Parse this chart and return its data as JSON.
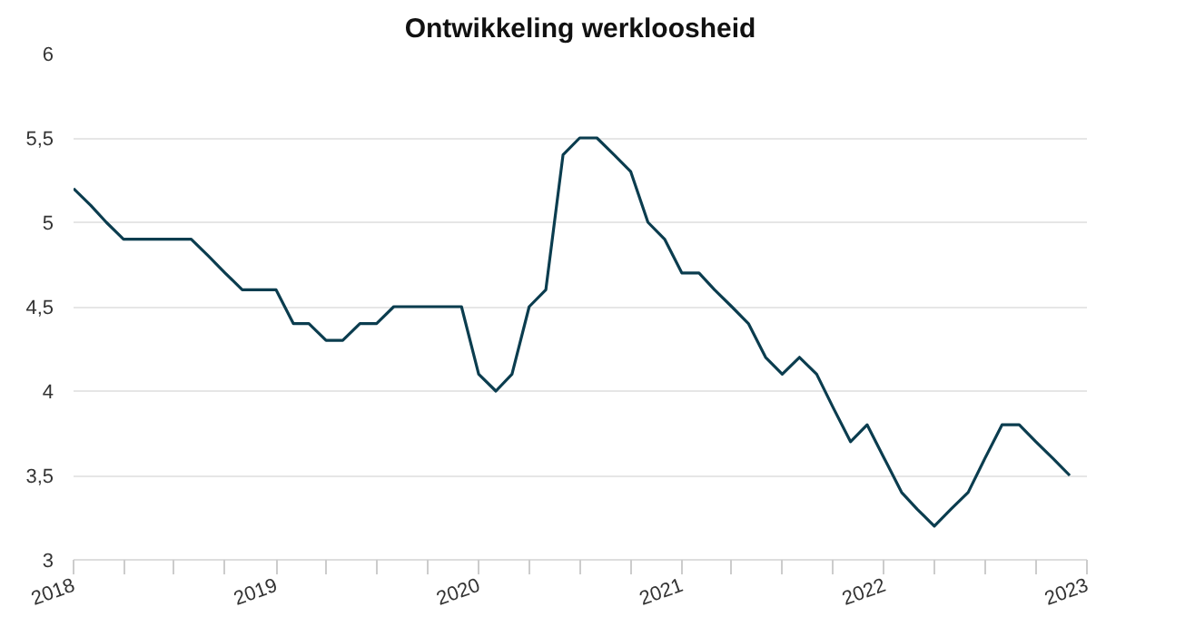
{
  "chart_data": {
    "type": "line",
    "title": "Ontwikkeling werkloosheid",
    "x": [
      "2018-01",
      "2018-02",
      "2018-03",
      "2018-04",
      "2018-05",
      "2018-06",
      "2018-07",
      "2018-08",
      "2018-09",
      "2018-10",
      "2018-11",
      "2018-12",
      "2019-01",
      "2019-02",
      "2019-03",
      "2019-04",
      "2019-05",
      "2019-06",
      "2019-07",
      "2019-08",
      "2019-09",
      "2019-10",
      "2019-11",
      "2019-12",
      "2020-01",
      "2020-02",
      "2020-03",
      "2020-04",
      "2020-05",
      "2020-06",
      "2020-07",
      "2020-08",
      "2020-09",
      "2020-10",
      "2020-11",
      "2020-12",
      "2021-01",
      "2021-02",
      "2021-03",
      "2021-04",
      "2021-05",
      "2021-06",
      "2021-07",
      "2021-08",
      "2021-09",
      "2021-10",
      "2021-11",
      "2021-12",
      "2022-01",
      "2022-02",
      "2022-03",
      "2022-04",
      "2022-05",
      "2022-06",
      "2022-07",
      "2022-08",
      "2022-09",
      "2022-10",
      "2022-11",
      "2022-12"
    ],
    "series": [
      {
        "color": "#0b3d4f",
        "values": [
          5.2,
          5.1,
          5.0,
          4.9,
          4.9,
          4.9,
          4.9,
          4.9,
          4.8,
          4.7,
          4.6,
          4.6,
          4.6,
          4.4,
          4.4,
          4.3,
          4.3,
          4.4,
          4.4,
          4.5,
          4.5,
          4.5,
          4.5,
          4.5,
          4.1,
          4.0,
          4.1,
          4.5,
          4.6,
          5.4,
          5.5,
          5.5,
          5.4,
          5.3,
          5.0,
          4.9,
          4.7,
          4.7,
          4.6,
          4.5,
          4.4,
          4.2,
          4.1,
          4.2,
          4.1,
          3.9,
          3.7,
          3.8,
          3.6,
          3.4,
          3.3,
          3.2,
          3.3,
          3.4,
          3.6,
          3.8,
          3.8,
          3.7,
          3.6,
          3.5
        ]
      }
    ],
    "xlim": [
      "2018-01",
      "2023-01"
    ],
    "xticks": [
      {
        "value": "2018-01",
        "label": "2018"
      },
      {
        "value": "2018-04",
        "label": null
      },
      {
        "value": "2018-07",
        "label": null
      },
      {
        "value": "2018-10",
        "label": null
      },
      {
        "value": "2019-01",
        "label": "2019"
      },
      {
        "value": "2019-04",
        "label": null
      },
      {
        "value": "2019-07",
        "label": null
      },
      {
        "value": "2019-10",
        "label": null
      },
      {
        "value": "2020-01",
        "label": "2020"
      },
      {
        "value": "2020-04",
        "label": null
      },
      {
        "value": "2020-07",
        "label": null
      },
      {
        "value": "2020-10",
        "label": null
      },
      {
        "value": "2021-01",
        "label": "2021"
      },
      {
        "value": "2021-04",
        "label": null
      },
      {
        "value": "2021-07",
        "label": null
      },
      {
        "value": "2021-10",
        "label": null
      },
      {
        "value": "2022-01",
        "label": "2022"
      },
      {
        "value": "2022-04",
        "label": null
      },
      {
        "value": "2022-07",
        "label": null
      },
      {
        "value": "2022-10",
        "label": null
      },
      {
        "value": "2023-01",
        "label": "2023"
      }
    ],
    "ylim": [
      3,
      6
    ],
    "yticks": [
      {
        "value": 3,
        "label": "3"
      },
      {
        "value": 3.5,
        "label": "3,5"
      },
      {
        "value": 4,
        "label": "4"
      },
      {
        "value": 4.5,
        "label": "4,5"
      },
      {
        "value": 5,
        "label": "5"
      },
      {
        "value": 5.5,
        "label": "5,5"
      },
      {
        "value": 6,
        "label": "6"
      }
    ],
    "grid": "y",
    "marker": "none",
    "line_style": "solid"
  }
}
